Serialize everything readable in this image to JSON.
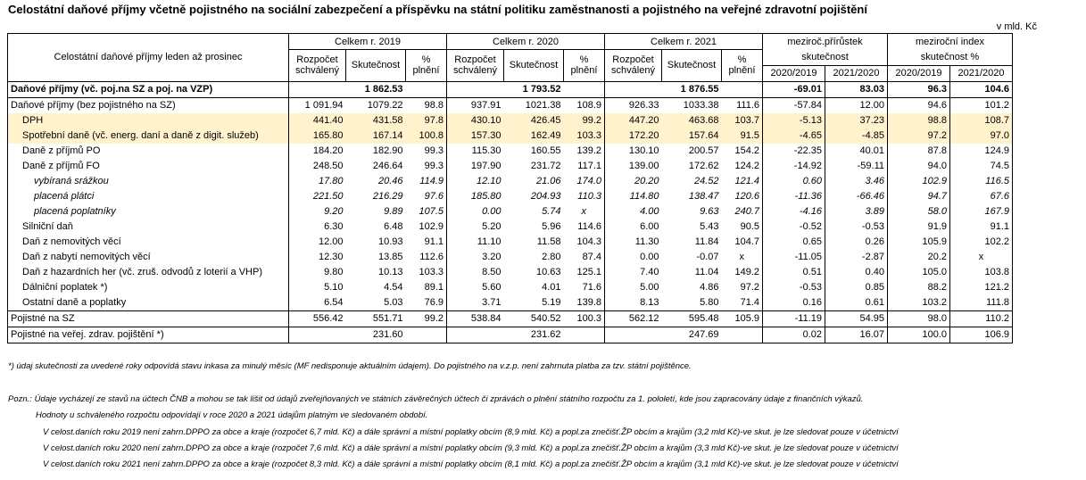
{
  "title": "Celostátní daňové příjmy včetně pojistného na sociální zabezpečení a příspěvku na státní politiku zaměstnanosti a pojistného na veřejné zdravotní pojištění",
  "unit": "v mld. Kč",
  "header": {
    "row_label": "Celostátní daňové příjmy leden až prosinec",
    "y2019": "Celkem r. 2019",
    "y2020": "Celkem r. 2020",
    "y2021": "Celkem r. 2021",
    "increase": "meziroč.přírůstek",
    "increase_sub": "skutečnost",
    "index": "meziroční index",
    "index_sub": "skutečnost %",
    "budget_1": "Rozpočet",
    "budget_2": "schválený",
    "actual": "Skutečnost",
    "pct_1": "%",
    "pct_2": "plnění",
    "p2020": "2020/2019",
    "p2021": "2021/2020"
  },
  "rows": [
    {
      "label": "Daňové příjmy (vč. poj.na SZ a poj. na VZP)",
      "v": [
        "",
        "1 862.53",
        "",
        "",
        "1 793.52",
        "",
        "",
        "1 876.55",
        "",
        "-69.01",
        "83.03",
        "96.3",
        "104.6"
      ]
    },
    {
      "label": "Daňové příjmy (bez pojistného na SZ)",
      "v": [
        "1 091.94",
        "1079.22",
        "98.8",
        "937.91",
        "1021.38",
        "108.9",
        "926.33",
        "1033.38",
        "111.6",
        "-57.84",
        "12.00",
        "94.6",
        "101.2"
      ]
    },
    {
      "label": "DPH",
      "v": [
        "441.40",
        "431.58",
        "97.8",
        "430.10",
        "426.45",
        "99.2",
        "447.20",
        "463.68",
        "103.7",
        "-5.13",
        "37.23",
        "98.8",
        "108.7"
      ]
    },
    {
      "label": "Spotřební daně (vč. energ. daní a daně z digit. služeb)",
      "v": [
        "165.80",
        "167.14",
        "100.8",
        "157.30",
        "162.49",
        "103.3",
        "172.20",
        "157.64",
        "91.5",
        "-4.65",
        "-4.85",
        "97.2",
        "97.0"
      ]
    },
    {
      "label": "Daně z příjmů PO",
      "v": [
        "184.20",
        "182.90",
        "99.3",
        "115.30",
        "160.55",
        "139.2",
        "130.10",
        "200.57",
        "154.2",
        "-22.35",
        "40.01",
        "87.8",
        "124.9"
      ]
    },
    {
      "label": "Daně z příjmů FO",
      "v": [
        "248.50",
        "246.64",
        "99.3",
        "197.90",
        "231.72",
        "117.1",
        "139.00",
        "172.62",
        "124.2",
        "-14.92",
        "-59.11",
        "94.0",
        "74.5"
      ]
    },
    {
      "label": "vybíraná srážkou",
      "v": [
        "17.80",
        "20.46",
        "114.9",
        "12.10",
        "21.06",
        "174.0",
        "20.20",
        "24.52",
        "121.4",
        "0.60",
        "3.46",
        "102.9",
        "116.5"
      ]
    },
    {
      "label": "placená plátci",
      "v": [
        "221.50",
        "216.29",
        "97.6",
        "185.80",
        "204.93",
        "110.3",
        "114.80",
        "138.47",
        "120.6",
        "-11.36",
        "-66.46",
        "94.7",
        "67.6"
      ]
    },
    {
      "label": "placená poplatníky",
      "v": [
        "9.20",
        "9.89",
        "107.5",
        "0.00",
        "5.74",
        "x",
        "4.00",
        "9.63",
        "240.7",
        "-4.16",
        "3.89",
        "58.0",
        "167.9"
      ]
    },
    {
      "label": "Silniční daň",
      "v": [
        "6.30",
        "6.48",
        "102.9",
        "5.20",
        "5.96",
        "114.6",
        "6.00",
        "5.43",
        "90.5",
        "-0.52",
        "-0.53",
        "91.9",
        "91.1"
      ]
    },
    {
      "label": "Daň z nemovitých věcí",
      "v": [
        "12.00",
        "10.93",
        "91.1",
        "11.10",
        "11.58",
        "104.3",
        "11.30",
        "11.84",
        "104.7",
        "0.65",
        "0.26",
        "105.9",
        "102.2"
      ]
    },
    {
      "label": "Daň z nabytí nemovitých věcí",
      "v": [
        "12.30",
        "13.85",
        "112.6",
        "3.20",
        "2.80",
        "87.4",
        "0.00",
        "-0.07",
        "x",
        "-11.05",
        "-2.87",
        "20.2",
        "x"
      ]
    },
    {
      "label": "Daň z hazardních her (vč. zruš. odvodů z loterií a VHP)",
      "v": [
        "9.80",
        "10.13",
        "103.3",
        "8.50",
        "10.63",
        "125.1",
        "7.40",
        "11.04",
        "149.2",
        "0.51",
        "0.40",
        "105.0",
        "103.8"
      ]
    },
    {
      "label": "Dálniční poplatek *)",
      "v": [
        "5.10",
        "4.54",
        "89.1",
        "5.60",
        "4.01",
        "71.6",
        "5.00",
        "4.86",
        "97.2",
        "-0.53",
        "0.85",
        "88.2",
        "121.2"
      ]
    },
    {
      "label": "Ostatní daně a poplatky",
      "v": [
        "6.54",
        "5.03",
        "76.9",
        "3.71",
        "5.19",
        "139.8",
        "8.13",
        "5.80",
        "71.4",
        "0.16",
        "0.61",
        "103.2",
        "111.8"
      ]
    },
    {
      "label": "Pojistné na SZ",
      "v": [
        "556.42",
        "551.71",
        "99.2",
        "538.84",
        "540.52",
        "100.3",
        "562.12",
        "595.48",
        "105.9",
        "-11.19",
        "54.95",
        "98.0",
        "110.2"
      ]
    },
    {
      "label": "Pojistné na veřej. zdrav. pojištění *)",
      "v": [
        "",
        "231.60",
        "",
        "",
        "231.62",
        "",
        "",
        "247.69",
        "",
        "0.02",
        "16.07",
        "100.0",
        "106.9"
      ]
    }
  ],
  "footnote": "*) údaj skutečnosti za uvedené roky odpovídá stavu inkasa za minulý měsíc (MF nedisponuje aktuálním údajem). Do pojistného na v.z.p. není zahrnuta platba za tzv. státní pojištěnce.",
  "notes": [
    "Pozn.: Údaje vycházejí ze stavů na účtech ČNB a mohou se tak lišit od údajů zveřejňovaných ve státních závěrečných účtech či zprávách o plnění státního rozpočtu za 1. pololetí, kde jsou zapracovány údaje z finančních výkazů.",
    "Hodnoty u schváleného rozpočtu odpovídají v roce 2020 a 2021 údajům platným ve sledovaném období.",
    "V celost.daních roku 2019 není zahrn.DPPO za obce a kraje (rozpočet 6,7 mld. Kč) a dále správní a místní poplatky obcím (8,9 mld. Kč) a popl.za znečišť.ŽP obcím a krajům (3,2 mld Kč)-ve skut. je lze sledovat pouze v účetnictví",
    "V celost.daních roku 2020 není zahrn.DPPO za obce a kraje (rozpočet 7,6 mld. Kč) a dále správní a místní poplatky obcím (9,3 mld. Kč) a popl.za znečišť.ŽP obcím a krajům (3,3 mld Kč)-ve skut. je lze sledovat pouze v účetnictví",
    "V celost.daních roku 2021 není zahrn.DPPO za obce a kraje (rozpočet 8,3 mld. Kč) a dále správní a místní poplatky obcím (8,1 mld. Kč) a popl.za znečišť.ŽP obcím a krajům (3,1 mld Kč)-ve skut. je lze sledovat pouze v účetnictví"
  ]
}
